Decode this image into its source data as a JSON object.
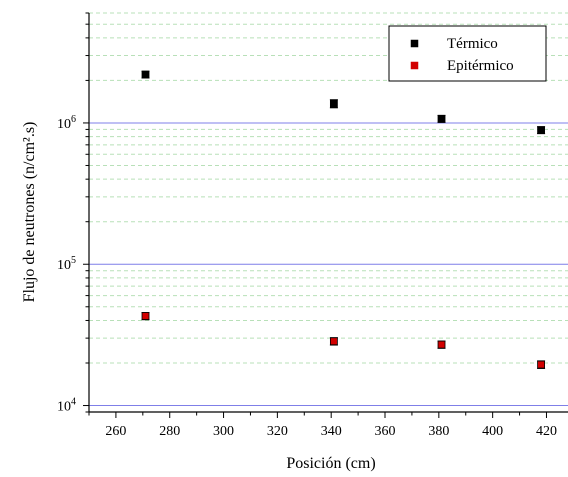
{
  "chart_data": {
    "type": "scatter",
    "title": "",
    "xlabel": "Posición (cm)",
    "ylabel": "Flujo de neutrones (n/cm².s)",
    "xlim": [
      250,
      428
    ],
    "ylim": [
      9000,
      6000000
    ],
    "yscale": "log",
    "x_ticks": [
      "260",
      "280",
      "300",
      "320",
      "340",
      "360",
      "380",
      "400",
      "420"
    ],
    "y_ticks": [
      {
        "base": "10",
        "exp": "4"
      },
      {
        "base": "10",
        "exp": "5"
      },
      {
        "base": "10",
        "exp": "6"
      }
    ],
    "grid": {
      "major_y": true,
      "minor_y": true
    },
    "legend_position": "top-right",
    "series": [
      {
        "name": "Térmico",
        "color": "#000000",
        "x": [
          271,
          341,
          381,
          418
        ],
        "y": [
          2200000,
          1370000,
          1070000,
          890000
        ],
        "error": [
          120000,
          90000,
          60000,
          50000
        ]
      },
      {
        "name": "Epitérmico",
        "color": "#d20000",
        "x": [
          271,
          341,
          381,
          418
        ],
        "y": [
          43000,
          28500,
          27000,
          19500
        ],
        "error": [
          2500,
          1700,
          1600,
          1200
        ]
      }
    ],
    "colors": {
      "major_grid": "#7f7fe8",
      "minor_grid": "#b8e0b8",
      "axis": "#000000"
    }
  }
}
